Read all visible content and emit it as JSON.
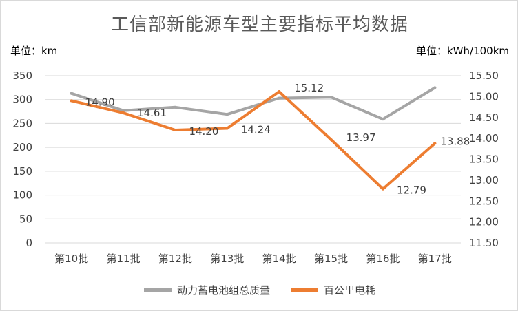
{
  "chart_data": {
    "type": "line",
    "title": "工信部新能源车型主要指标平均数据",
    "ylabel": "单位：km",
    "y2label": "单位：kWh/100km",
    "categories": [
      "第10批",
      "第11批",
      "第12批",
      "第13批",
      "第14批",
      "第15批",
      "第16批",
      "第17批"
    ],
    "ylim": [
      0,
      350
    ],
    "yticks": [
      0,
      50,
      100,
      150,
      200,
      250,
      300,
      350
    ],
    "y2lim": [
      11.5,
      15.5
    ],
    "y2ticks": [
      "11.50",
      "12.00",
      "12.50",
      "13.00",
      "13.50",
      "14.00",
      "14.50",
      "15.00",
      "15.50"
    ],
    "grid": true,
    "legend_position": "bottom",
    "series": [
      {
        "name": "动力蓄电池组总质量",
        "axis": "left",
        "color": "#a5a5a5",
        "values": [
          313,
          277,
          284,
          269,
          303,
          305,
          259,
          325
        ],
        "labels": []
      },
      {
        "name": "百公里电耗",
        "axis": "right",
        "color": "#ed7d31",
        "values": [
          14.9,
          14.61,
          14.2,
          14.24,
          15.12,
          13.97,
          12.79,
          13.88
        ],
        "labels": [
          "14.90",
          "14.61",
          "14.20",
          "14.24",
          "15.12",
          "13.97",
          "12.79",
          "13.88"
        ]
      }
    ]
  }
}
